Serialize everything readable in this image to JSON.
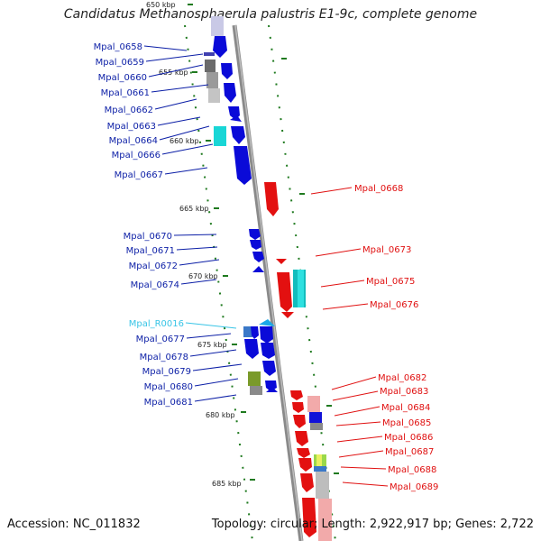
{
  "title": "Candidatus Methanosphaerula palustris E1-9c, complete genome",
  "accession": "Accession: NC_011832",
  "topology": "Topology: circular; Length: 2,922,917 bp; Genes: 2,722",
  "colors": {
    "left_label": "#0b1ea6",
    "right_label": "#e01010",
    "rna_label": "#37c4e6",
    "backbone": "#8a8a8a",
    "tick": "#1f7a1f"
  },
  "kbp_marks": [
    "650 kbp",
    "655 kbp",
    "660 kbp",
    "665 kbp",
    "670 kbp",
    "675 kbp",
    "680 kbp",
    "685 kbp"
  ],
  "left_labels": [
    "Mpal_0658",
    "Mpal_0659",
    "Mpal_0660",
    "Mpal_0661",
    "Mpal_0662",
    "Mpal_0663",
    "Mpal_0664",
    "Mpal_0666",
    "Mpal_0667",
    "Mpal_0670",
    "Mpal_0671",
    "Mpal_0672",
    "Mpal_0674",
    "Mpal_R0016",
    "Mpal_0677",
    "Mpal_0678",
    "Mpal_0679",
    "Mpal_0680",
    "Mpal_0681"
  ],
  "right_labels": [
    "Mpal_0668",
    "Mpal_0673",
    "Mpal_0675",
    "Mpal_0676",
    "Mpal_0682",
    "Mpal_0683",
    "Mpal_0684",
    "Mpal_0685",
    "Mpal_0686",
    "Mpal_0687",
    "Mpal_0688",
    "Mpal_0689"
  ]
}
